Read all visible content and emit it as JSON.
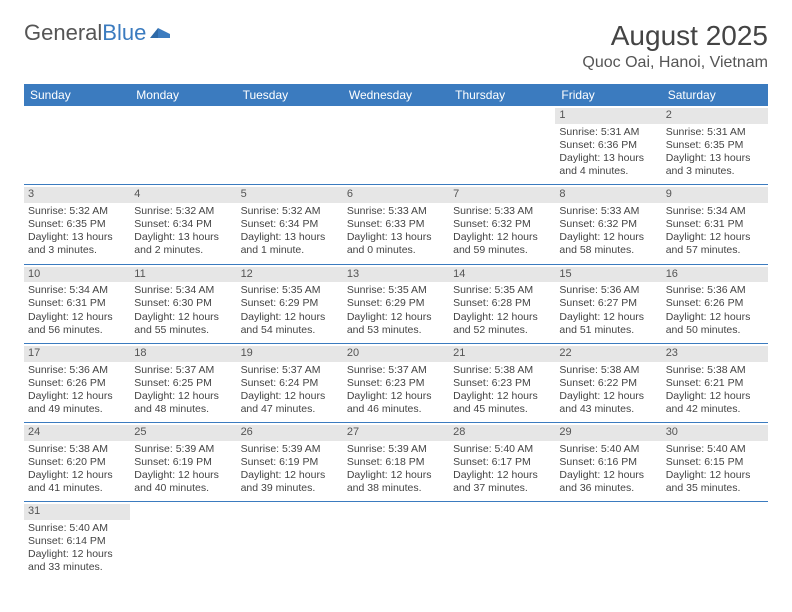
{
  "logo": {
    "general": "General",
    "blue": "Blue"
  },
  "title": "August 2025",
  "location": "Quoc Oai, Hanoi, Vietnam",
  "colors": {
    "header_bg": "#3b7bbf",
    "header_text": "#ffffff",
    "daynum_bg": "#e6e6e6",
    "border": "#3b7bbf",
    "text": "#444444",
    "page_bg": "#ffffff"
  },
  "weekdays": [
    "Sunday",
    "Monday",
    "Tuesday",
    "Wednesday",
    "Thursday",
    "Friday",
    "Saturday"
  ],
  "weeks": [
    [
      {
        "empty": true
      },
      {
        "empty": true
      },
      {
        "empty": true
      },
      {
        "empty": true
      },
      {
        "empty": true
      },
      {
        "day": "1",
        "sunrise": "Sunrise: 5:31 AM",
        "sunset": "Sunset: 6:36 PM",
        "daylight": "Daylight: 13 hours and 4 minutes."
      },
      {
        "day": "2",
        "sunrise": "Sunrise: 5:31 AM",
        "sunset": "Sunset: 6:35 PM",
        "daylight": "Daylight: 13 hours and 3 minutes."
      }
    ],
    [
      {
        "day": "3",
        "sunrise": "Sunrise: 5:32 AM",
        "sunset": "Sunset: 6:35 PM",
        "daylight": "Daylight: 13 hours and 3 minutes."
      },
      {
        "day": "4",
        "sunrise": "Sunrise: 5:32 AM",
        "sunset": "Sunset: 6:34 PM",
        "daylight": "Daylight: 13 hours and 2 minutes."
      },
      {
        "day": "5",
        "sunrise": "Sunrise: 5:32 AM",
        "sunset": "Sunset: 6:34 PM",
        "daylight": "Daylight: 13 hours and 1 minute."
      },
      {
        "day": "6",
        "sunrise": "Sunrise: 5:33 AM",
        "sunset": "Sunset: 6:33 PM",
        "daylight": "Daylight: 13 hours and 0 minutes."
      },
      {
        "day": "7",
        "sunrise": "Sunrise: 5:33 AM",
        "sunset": "Sunset: 6:32 PM",
        "daylight": "Daylight: 12 hours and 59 minutes."
      },
      {
        "day": "8",
        "sunrise": "Sunrise: 5:33 AM",
        "sunset": "Sunset: 6:32 PM",
        "daylight": "Daylight: 12 hours and 58 minutes."
      },
      {
        "day": "9",
        "sunrise": "Sunrise: 5:34 AM",
        "sunset": "Sunset: 6:31 PM",
        "daylight": "Daylight: 12 hours and 57 minutes."
      }
    ],
    [
      {
        "day": "10",
        "sunrise": "Sunrise: 5:34 AM",
        "sunset": "Sunset: 6:31 PM",
        "daylight": "Daylight: 12 hours and 56 minutes."
      },
      {
        "day": "11",
        "sunrise": "Sunrise: 5:34 AM",
        "sunset": "Sunset: 6:30 PM",
        "daylight": "Daylight: 12 hours and 55 minutes."
      },
      {
        "day": "12",
        "sunrise": "Sunrise: 5:35 AM",
        "sunset": "Sunset: 6:29 PM",
        "daylight": "Daylight: 12 hours and 54 minutes."
      },
      {
        "day": "13",
        "sunrise": "Sunrise: 5:35 AM",
        "sunset": "Sunset: 6:29 PM",
        "daylight": "Daylight: 12 hours and 53 minutes."
      },
      {
        "day": "14",
        "sunrise": "Sunrise: 5:35 AM",
        "sunset": "Sunset: 6:28 PM",
        "daylight": "Daylight: 12 hours and 52 minutes."
      },
      {
        "day": "15",
        "sunrise": "Sunrise: 5:36 AM",
        "sunset": "Sunset: 6:27 PM",
        "daylight": "Daylight: 12 hours and 51 minutes."
      },
      {
        "day": "16",
        "sunrise": "Sunrise: 5:36 AM",
        "sunset": "Sunset: 6:26 PM",
        "daylight": "Daylight: 12 hours and 50 minutes."
      }
    ],
    [
      {
        "day": "17",
        "sunrise": "Sunrise: 5:36 AM",
        "sunset": "Sunset: 6:26 PM",
        "daylight": "Daylight: 12 hours and 49 minutes."
      },
      {
        "day": "18",
        "sunrise": "Sunrise: 5:37 AM",
        "sunset": "Sunset: 6:25 PM",
        "daylight": "Daylight: 12 hours and 48 minutes."
      },
      {
        "day": "19",
        "sunrise": "Sunrise: 5:37 AM",
        "sunset": "Sunset: 6:24 PM",
        "daylight": "Daylight: 12 hours and 47 minutes."
      },
      {
        "day": "20",
        "sunrise": "Sunrise: 5:37 AM",
        "sunset": "Sunset: 6:23 PM",
        "daylight": "Daylight: 12 hours and 46 minutes."
      },
      {
        "day": "21",
        "sunrise": "Sunrise: 5:38 AM",
        "sunset": "Sunset: 6:23 PM",
        "daylight": "Daylight: 12 hours and 45 minutes."
      },
      {
        "day": "22",
        "sunrise": "Sunrise: 5:38 AM",
        "sunset": "Sunset: 6:22 PM",
        "daylight": "Daylight: 12 hours and 43 minutes."
      },
      {
        "day": "23",
        "sunrise": "Sunrise: 5:38 AM",
        "sunset": "Sunset: 6:21 PM",
        "daylight": "Daylight: 12 hours and 42 minutes."
      }
    ],
    [
      {
        "day": "24",
        "sunrise": "Sunrise: 5:38 AM",
        "sunset": "Sunset: 6:20 PM",
        "daylight": "Daylight: 12 hours and 41 minutes."
      },
      {
        "day": "25",
        "sunrise": "Sunrise: 5:39 AM",
        "sunset": "Sunset: 6:19 PM",
        "daylight": "Daylight: 12 hours and 40 minutes."
      },
      {
        "day": "26",
        "sunrise": "Sunrise: 5:39 AM",
        "sunset": "Sunset: 6:19 PM",
        "daylight": "Daylight: 12 hours and 39 minutes."
      },
      {
        "day": "27",
        "sunrise": "Sunrise: 5:39 AM",
        "sunset": "Sunset: 6:18 PM",
        "daylight": "Daylight: 12 hours and 38 minutes."
      },
      {
        "day": "28",
        "sunrise": "Sunrise: 5:40 AM",
        "sunset": "Sunset: 6:17 PM",
        "daylight": "Daylight: 12 hours and 37 minutes."
      },
      {
        "day": "29",
        "sunrise": "Sunrise: 5:40 AM",
        "sunset": "Sunset: 6:16 PM",
        "daylight": "Daylight: 12 hours and 36 minutes."
      },
      {
        "day": "30",
        "sunrise": "Sunrise: 5:40 AM",
        "sunset": "Sunset: 6:15 PM",
        "daylight": "Daylight: 12 hours and 35 minutes."
      }
    ],
    [
      {
        "day": "31",
        "sunrise": "Sunrise: 5:40 AM",
        "sunset": "Sunset: 6:14 PM",
        "daylight": "Daylight: 12 hours and 33 minutes."
      },
      {
        "empty": true
      },
      {
        "empty": true
      },
      {
        "empty": true
      },
      {
        "empty": true
      },
      {
        "empty": true
      },
      {
        "empty": true
      }
    ]
  ]
}
